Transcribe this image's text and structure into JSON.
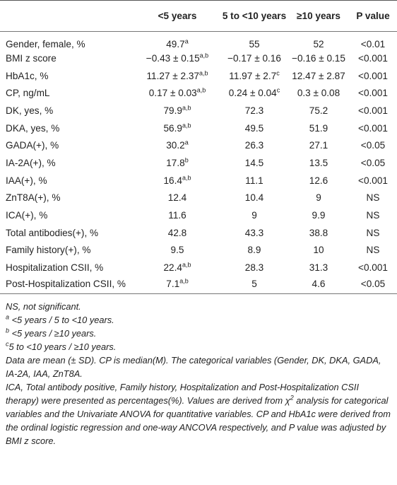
{
  "table": {
    "header": [
      "",
      "<5 years",
      "5 to <10 years",
      "≥10 years",
      "P value"
    ],
    "rows": [
      [
        "Gender, female, %",
        {
          "text": "49.7",
          "sup": "a"
        },
        "55",
        "52",
        "<0.01"
      ],
      [
        "BMI z score",
        {
          "text": "−0.43 ± 0.15",
          "sup": "a,b"
        },
        "−0.17 ± 0.16",
        "−0.16 ± 0.15",
        "<0.001"
      ],
      [
        "HbA1c, %",
        {
          "text": "11.27 ± 2.37",
          "sup": "a,b"
        },
        {
          "text": "11.97 ± 2.7",
          "sup": "c"
        },
        "12.47 ± 2.87",
        "<0.001"
      ],
      [
        "CP, ng/mL",
        {
          "text": "0.17 ± 0.03",
          "sup": "a,b"
        },
        {
          "text": "0.24 ± 0.04",
          "sup": "c"
        },
        "0.3 ± 0.08",
        "<0.001"
      ],
      [
        "DK, yes, %",
        {
          "text": "79.9",
          "sup": "a,b"
        },
        "72.3",
        "75.2",
        "<0.001"
      ],
      [
        "DKA, yes, %",
        {
          "text": "56.9",
          "sup": "a,b"
        },
        "49.5",
        "51.9",
        "<0.001"
      ],
      [
        "GADA(+), %",
        {
          "text": "30.2",
          "sup": "a"
        },
        "26.3",
        "27.1",
        "<0.05"
      ],
      [
        "IA-2A(+), %",
        {
          "text": "17.8",
          "sup": "b"
        },
        "14.5",
        "13.5",
        "<0.05"
      ],
      [
        "IAA(+), %",
        {
          "text": "16.4",
          "sup": "a,b"
        },
        "11.1",
        "12.6",
        "<0.001"
      ],
      [
        "ZnT8A(+), %",
        "12.4",
        "10.4",
        "9",
        "NS"
      ],
      [
        "ICA(+), %",
        "11.6",
        "9",
        "9.9",
        "NS"
      ],
      [
        "Total antibodies(+), %",
        "42.8",
        "43.3",
        "38.8",
        "NS"
      ],
      [
        "Family history(+), %",
        "9.5",
        "8.9",
        "10",
        "NS"
      ],
      [
        "Hospitalization CSII, %",
        {
          "text": "22.4",
          "sup": "a,b"
        },
        "28.3",
        "31.3",
        "<0.001"
      ],
      [
        "Post-Hospitalization CSII, %",
        {
          "text": "7.1",
          "sup": "a,b"
        },
        "5",
        "4.6",
        "<0.05"
      ]
    ]
  },
  "notes": [
    {
      "text": "NS, not significant."
    },
    {
      "sup": "a",
      "text": " <5 years / 5 to <10 years."
    },
    {
      "sup": "b",
      "text": " <5 years / ≥10 years."
    },
    {
      "sup": "c",
      "text": "5 to <10 years / ≥10 years."
    },
    {
      "text": "Data are mean (± SD). CP is median(M). The categorical variables (Gender, DK, DKA, GADA, IA-2A, IAA, ZnT8A."
    },
    {
      "text": "ICA, Total antibody positive, Family history, Hospitalization and Post-Hospitalization CSII therapy) were presented as percentages(%). Values are derived from χ",
      "sup_after": "2",
      "text_after": " analysis for categorical variables and the Univariate ANOVA for quantitative variables. CP and HbA1c were derived from the ordinal logistic regression and one-way ANCOVA respectively, and P value was adjusted by BMI z score."
    }
  ]
}
